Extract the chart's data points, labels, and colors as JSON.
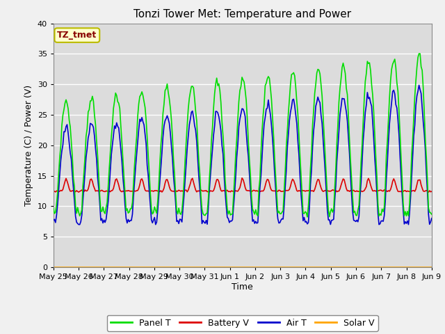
{
  "title": "Tonzi Tower Met: Temperature and Power",
  "xlabel": "Time",
  "ylabel": "Temperature (C) / Power (V)",
  "ylim": [
    0,
    40
  ],
  "yticks": [
    0,
    5,
    10,
    15,
    20,
    25,
    30,
    35,
    40
  ],
  "background_color": "#dcdcdc",
  "axes_bg": "#dcdcdc",
  "grid_color": "#ffffff",
  "label_box_text": "TZ_tmet",
  "label_box_facecolor": "#ffffcc",
  "label_box_edgecolor": "#bbbb00",
  "label_box_textcolor": "#880000",
  "panel_t_color": "#00dd00",
  "battery_v_color": "#dd0000",
  "air_t_color": "#0000cc",
  "solar_v_color": "#ffa500",
  "x_tick_labels": [
    "May 25",
    "May 26",
    "May 27",
    "May 28",
    "May 29",
    "May 30",
    "May 31",
    "Jun 1",
    "Jun 2",
    "Jun 3",
    "Jun 4",
    "Jun 5",
    "Jun 6",
    "Jun 7",
    "Jun 8",
    "Jun 9"
  ],
  "num_days": 15,
  "title_fontsize": 11,
  "axis_label_fontsize": 9,
  "tick_fontsize": 8
}
